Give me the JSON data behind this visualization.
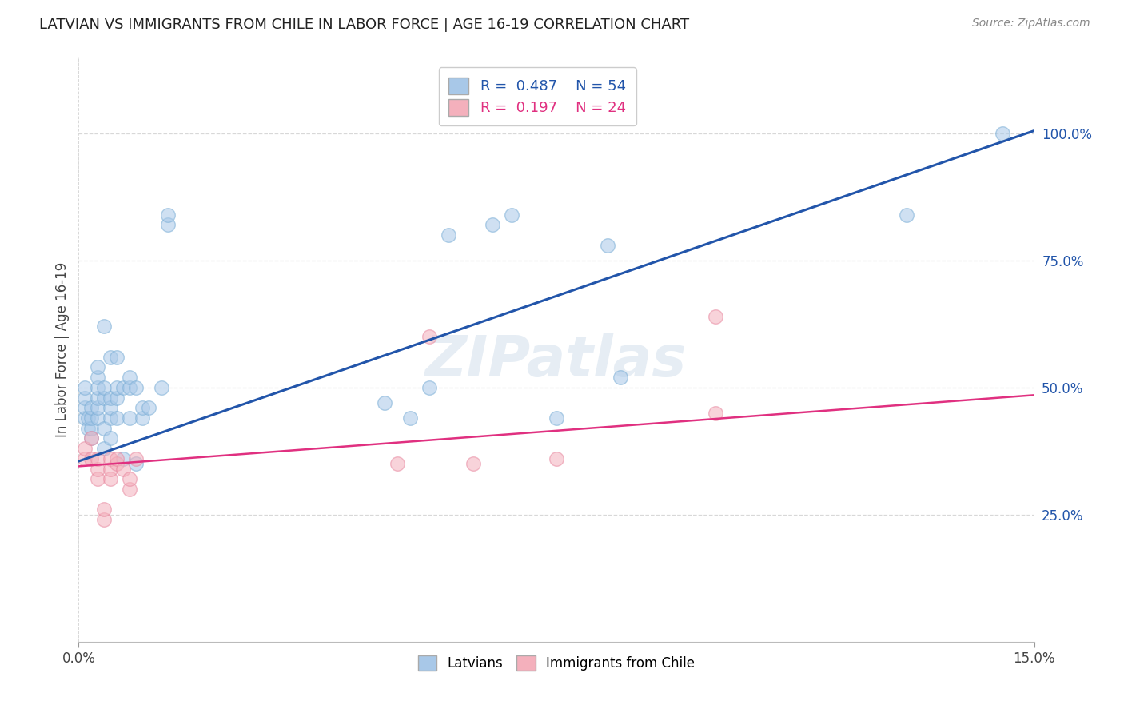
{
  "title": "LATVIAN VS IMMIGRANTS FROM CHILE IN LABOR FORCE | AGE 16-19 CORRELATION CHART",
  "source": "Source: ZipAtlas.com",
  "ylabel": "In Labor Force | Age 16-19",
  "xmin": 0.0,
  "xmax": 0.15,
  "ymin": 0.0,
  "ymax": 1.15,
  "blue_R": 0.487,
  "blue_N": 54,
  "pink_R": 0.197,
  "pink_N": 24,
  "blue_fill": "#a8c8e8",
  "blue_edge": "#7aaed6",
  "pink_fill": "#f4b0bc",
  "pink_edge": "#e888a0",
  "blue_line": "#2255aa",
  "pink_line": "#e03080",
  "bg_color": "#ffffff",
  "grid_color": "#d8d8d8",
  "watermark": "ZIPatlas",
  "blue_x": [
    0.001,
    0.001,
    0.001,
    0.001,
    0.0015,
    0.0015,
    0.002,
    0.002,
    0.002,
    0.002,
    0.003,
    0.003,
    0.003,
    0.003,
    0.003,
    0.003,
    0.004,
    0.004,
    0.004,
    0.004,
    0.004,
    0.005,
    0.005,
    0.005,
    0.005,
    0.005,
    0.006,
    0.006,
    0.006,
    0.006,
    0.007,
    0.007,
    0.008,
    0.008,
    0.008,
    0.009,
    0.009,
    0.01,
    0.01,
    0.011,
    0.013,
    0.014,
    0.014,
    0.048,
    0.052,
    0.055,
    0.058,
    0.065,
    0.068,
    0.075,
    0.083,
    0.085,
    0.13,
    0.145
  ],
  "blue_y": [
    0.44,
    0.46,
    0.48,
    0.5,
    0.42,
    0.44,
    0.4,
    0.42,
    0.44,
    0.46,
    0.44,
    0.46,
    0.48,
    0.5,
    0.52,
    0.54,
    0.38,
    0.42,
    0.48,
    0.5,
    0.62,
    0.4,
    0.44,
    0.46,
    0.48,
    0.56,
    0.44,
    0.48,
    0.5,
    0.56,
    0.36,
    0.5,
    0.44,
    0.5,
    0.52,
    0.35,
    0.5,
    0.44,
    0.46,
    0.46,
    0.5,
    0.82,
    0.84,
    0.47,
    0.44,
    0.5,
    0.8,
    0.82,
    0.84,
    0.44,
    0.78,
    0.52,
    0.84,
    1.0
  ],
  "pink_x": [
    0.001,
    0.001,
    0.002,
    0.002,
    0.003,
    0.003,
    0.003,
    0.004,
    0.004,
    0.005,
    0.005,
    0.005,
    0.006,
    0.006,
    0.007,
    0.008,
    0.008,
    0.009,
    0.05,
    0.055,
    0.062,
    0.075,
    0.1,
    0.1
  ],
  "pink_y": [
    0.36,
    0.38,
    0.36,
    0.4,
    0.32,
    0.34,
    0.36,
    0.24,
    0.26,
    0.32,
    0.34,
    0.36,
    0.35,
    0.36,
    0.34,
    0.3,
    0.32,
    0.36,
    0.35,
    0.6,
    0.35,
    0.36,
    0.45,
    0.64
  ],
  "legend_bottom": [
    "Latvians",
    "Immigrants from Chile"
  ],
  "ytick_vals": [
    0.25,
    0.5,
    0.75,
    1.0
  ],
  "ytick_labels": [
    "25.0%",
    "50.0%",
    "75.0%",
    "100.0%"
  ],
  "blue_line_x0": 0.0,
  "blue_line_y0": 0.355,
  "blue_line_x1": 0.15,
  "blue_line_y1": 1.005,
  "pink_line_x0": 0.0,
  "pink_line_y0": 0.345,
  "pink_line_x1": 0.15,
  "pink_line_y1": 0.485
}
